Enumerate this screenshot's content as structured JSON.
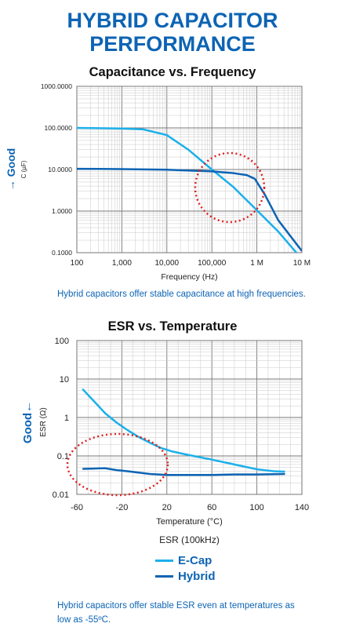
{
  "title_line1": "HYBRID CAPACITOR",
  "title_line2": "PERFORMANCE",
  "colors": {
    "ecap": "#1bb0ea",
    "hybrid": "#0d64b4",
    "accent": "#0d64b4",
    "circle": "#e02020"
  },
  "chart_data": [
    {
      "type": "line",
      "title": "Capacitance vs. Frequency",
      "xlabel": "Frequency (Hz)",
      "ylabel": "C (µF)",
      "side_label": "→ Good",
      "xscale": "log",
      "yscale": "log",
      "xlim": [
        100,
        10000000
      ],
      "ylim": [
        0.1,
        1000
      ],
      "x_ticks": [
        "100",
        "1,000",
        "10,000",
        "100,000",
        "1 M",
        "10 M"
      ],
      "y_ticks": [
        "0.1000",
        "1.0000",
        "10.0000",
        "100.0000",
        "1000.0000"
      ],
      "grid": true,
      "series": [
        {
          "name": "E-Cap",
          "x": [
            100,
            1000,
            3000,
            10000,
            30000,
            100000,
            300000,
            1000000,
            3000000,
            10000000
          ],
          "y": [
            100,
            97,
            92,
            67,
            30,
            10,
            3.8,
            1.05,
            0.32,
            0.07
          ]
        },
        {
          "name": "Hybrid",
          "x": [
            100,
            1000,
            10000,
            100000,
            300000,
            600000,
            900000,
            1500000,
            3000000,
            10000000
          ],
          "y": [
            10.4,
            10.2,
            9.9,
            9.0,
            8.2,
            7.3,
            6.0,
            2.5,
            0.6,
            0.11
          ]
        }
      ],
      "annotation": "dotted circle around the frequency range near 100,000–1 M"
    },
    {
      "type": "line",
      "title": "ESR vs. Temperature",
      "xlabel": "Temperature (°C)",
      "ylabel": "ESR (Ω)",
      "side_label": "Good←",
      "subtitle": "ESR (100kHz)",
      "xscale": "linear",
      "yscale": "log",
      "xlim": [
        -60,
        140
      ],
      "ylim": [
        0.01,
        100
      ],
      "x_ticks": [
        "-60",
        "-20",
        "20",
        "60",
        "100",
        "140"
      ],
      "y_ticks": [
        "0.01",
        "0.1",
        "1",
        "10",
        "100"
      ],
      "grid": true,
      "legend_position": "below",
      "series": [
        {
          "name": "E-Cap",
          "x": [
            -55,
            -45,
            -35,
            -25,
            -15,
            -5,
            5,
            15,
            25,
            40,
            60,
            80,
            100,
            115,
            125
          ],
          "y": [
            5.5,
            2.7,
            1.3,
            0.75,
            0.47,
            0.31,
            0.22,
            0.16,
            0.13,
            0.105,
            0.08,
            0.06,
            0.045,
            0.04,
            0.039
          ]
        },
        {
          "name": "Hybrid",
          "x": [
            -55,
            -45,
            -35,
            -25,
            -15,
            -5,
            5,
            20,
            40,
            60,
            80,
            100,
            125
          ],
          "y": [
            0.046,
            0.047,
            0.048,
            0.043,
            0.04,
            0.037,
            0.034,
            0.032,
            0.032,
            0.032,
            0.033,
            0.033,
            0.034
          ]
        }
      ],
      "annotation": "dotted ellipse around the low temperature range -55 to 20 °C"
    }
  ],
  "caption1": "Hybrid capacitors offer stable capacitance at high frequencies.",
  "caption2_line1": "Hybrid capacitors offer stable ESR even at temperatures as",
  "caption2_line2": "low as -55ºC.",
  "legend": {
    "ecap": "E-Cap",
    "hybrid": "Hybrid"
  }
}
